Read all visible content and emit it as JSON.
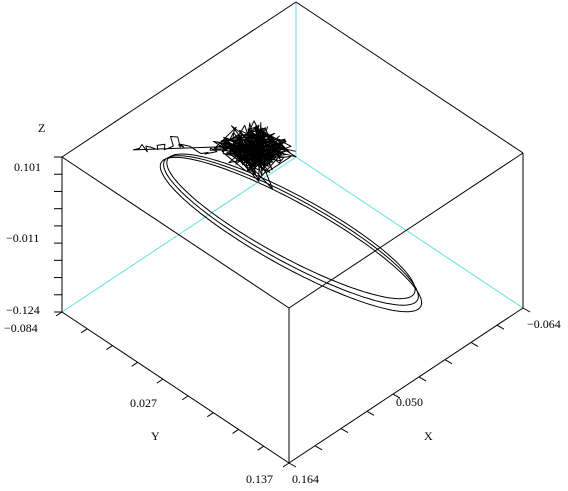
{
  "chart_data": {
    "type": "line3d",
    "title": "",
    "axes": {
      "x": {
        "label": "X",
        "range": [
          -0.064,
          0.164
        ],
        "ticks": [
          "0.164",
          "0.050",
          "−0.064"
        ]
      },
      "y": {
        "label": "Y",
        "range": [
          -0.084,
          0.137
        ],
        "ticks": [
          "−0.084",
          "0.027",
          "0.137"
        ]
      },
      "z": {
        "label": "Z",
        "range": [
          -0.124,
          0.101
        ],
        "ticks": [
          "0.101",
          "−0.011",
          "−0.124"
        ]
      }
    },
    "box": true,
    "grid": false,
    "legend": "none",
    "colors": {
      "line": "#000000",
      "box": "#000000",
      "hidden_edges": "#66dddd"
    },
    "series": [
      {
        "attractor": {
          "cx": 0.04,
          "cy": -0.02,
          "cz": 0.055,
          "spread": 0.018,
          "count": 140
        },
        "loops": [
          {
            "cx": 0.05,
            "cy": 0.025,
            "cz": -0.01,
            "rx": 0.09,
            "ry": 0.1,
            "rz": 0.105,
            "phase": 0.0
          },
          {
            "cx": 0.052,
            "cy": 0.027,
            "cz": -0.012,
            "rx": 0.093,
            "ry": 0.103,
            "rz": 0.108,
            "phase": 0.12
          },
          {
            "cx": 0.048,
            "cy": 0.023,
            "cz": -0.008,
            "rx": 0.087,
            "ry": 0.097,
            "rz": 0.102,
            "phase": -0.1
          }
        ]
      }
    ]
  }
}
